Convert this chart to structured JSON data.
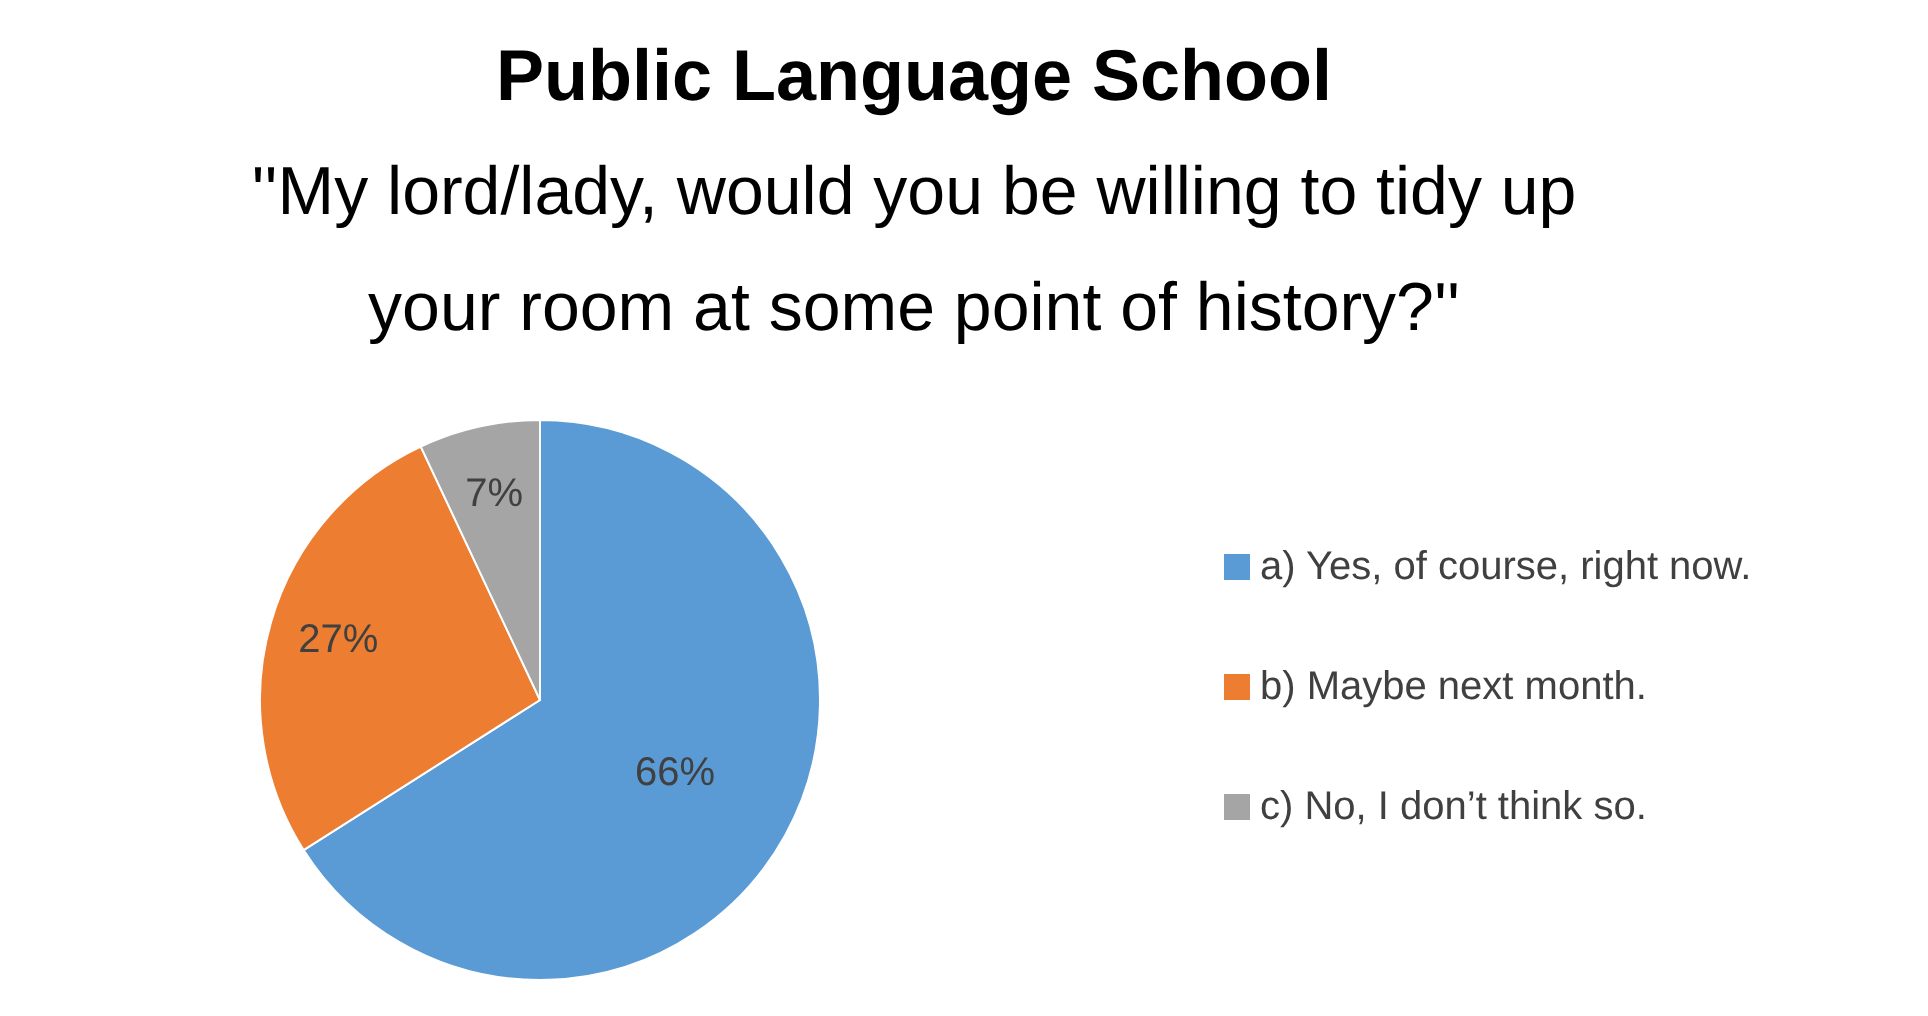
{
  "chart_data": {
    "type": "pie",
    "title": "Public Language School",
    "subtitle": "''My lord/lady, would you be willing to tidy up your room at some point of history?''",
    "categories": [
      "a) Yes, of course, right now.",
      "b) Maybe next month.",
      "c) No, I don’t think so."
    ],
    "values": [
      66,
      27,
      7
    ],
    "colors": [
      "#5b9bd5",
      "#ed7d31",
      "#a5a5a5"
    ],
    "value_labels": [
      "66%",
      "27%",
      "7%"
    ],
    "legend": "right"
  }
}
